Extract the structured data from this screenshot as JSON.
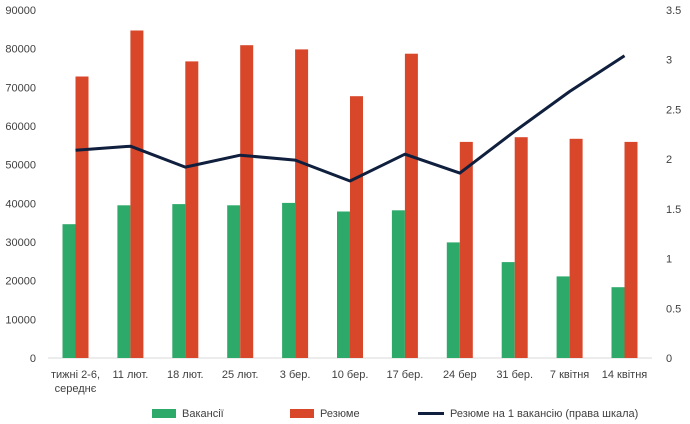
{
  "chart_data": {
    "type": "bar",
    "categories": [
      [
        "тижні 2-6,",
        "середнє"
      ],
      [
        "11 лют."
      ],
      [
        "18 лют."
      ],
      [
        "25 лют."
      ],
      [
        "3 бер."
      ],
      [
        "10 бер."
      ],
      [
        "17 бер."
      ],
      [
        "24 бер"
      ],
      [
        "31 бер."
      ],
      [
        "7 квітня"
      ],
      [
        "14 квітня"
      ]
    ],
    "series": [
      {
        "name": "Вакансії",
        "kind": "bar",
        "axis": "left",
        "color": "#2daa6a",
        "values": [
          34600,
          39500,
          39800,
          39500,
          40100,
          37900,
          38200,
          29900,
          24800,
          21100,
          18300
        ]
      },
      {
        "name": "Резюме",
        "kind": "bar",
        "axis": "left",
        "color": "#d9472b",
        "values": [
          72800,
          84700,
          76700,
          80900,
          79800,
          67700,
          78700,
          55900,
          57100,
          56700,
          55900
        ]
      },
      {
        "name": "Резюме на 1 вакансію (права шкала)",
        "kind": "line",
        "axis": "right",
        "color": "#0f1f3d",
        "values": [
          2.09,
          2.13,
          1.92,
          2.04,
          1.99,
          1.78,
          2.05,
          1.86,
          2.28,
          2.68,
          3.04
        ]
      }
    ],
    "y_left": {
      "min": 0,
      "max": 90000,
      "ticks": [
        0,
        10000,
        20000,
        30000,
        40000,
        50000,
        60000,
        70000,
        80000,
        90000
      ]
    },
    "y_right": {
      "min": 0,
      "max": 3.5,
      "ticks": [
        "0",
        "0.5",
        "1",
        "1.5",
        "2",
        "2.5",
        "3",
        "3.5"
      ]
    },
    "grid": false,
    "legend_position": "bottom"
  }
}
